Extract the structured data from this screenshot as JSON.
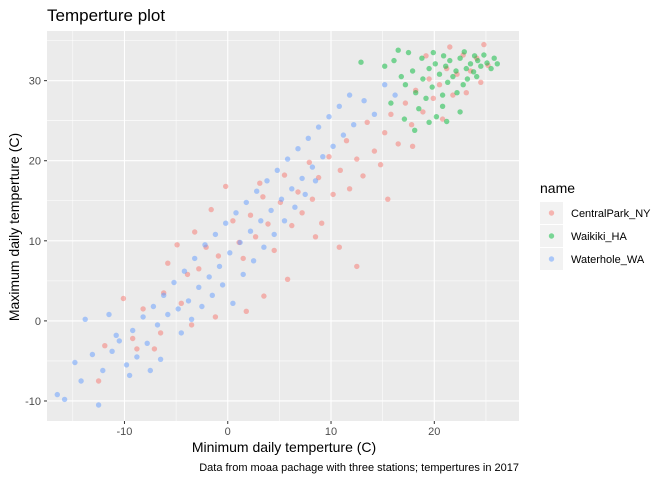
{
  "chart_data": {
    "type": "scatter",
    "title": "Temperture plot",
    "xlabel": "Minimum daily temperture (C)",
    "ylabel": "Maximum daily temperture (C)",
    "caption": "Data from moaa pachage with three stations; tempertures in 2017",
    "xlim": [
      -17.5,
      28.2
    ],
    "ylim": [
      -12.5,
      36.2
    ],
    "x_ticks": [
      -10,
      0,
      10,
      20
    ],
    "y_ticks": [
      -10,
      0,
      10,
      20,
      30
    ],
    "x_tick_labels": [
      "-10",
      "0",
      "10",
      "20"
    ],
    "y_tick_labels": [
      "-10",
      "0",
      "10",
      "20",
      "30"
    ],
    "grid": true,
    "legend": {
      "title": "name",
      "position": "right"
    },
    "point_alpha": 0.5,
    "series": [
      {
        "name": "CentralPark_NY",
        "color": "#F8766D",
        "points": [
          [
            -12.5,
            -7.5
          ],
          [
            -11.9,
            -3.1
          ],
          [
            -10.1,
            2.8
          ],
          [
            -9.2,
            -2.2
          ],
          [
            -8.8,
            -3.5
          ],
          [
            -8.2,
            1.5
          ],
          [
            -7.1,
            -3.5
          ],
          [
            -6.5,
            -1.5
          ],
          [
            -6.2,
            3.5
          ],
          [
            -5.8,
            7.2
          ],
          [
            -4.9,
            9.5
          ],
          [
            -4.5,
            2.2
          ],
          [
            -3.9,
            5.8
          ],
          [
            -3.2,
            11.1
          ],
          [
            -2.8,
            6.5
          ],
          [
            -2.1,
            9.2
          ],
          [
            -1.6,
            13.9
          ],
          [
            -0.9,
            8.1
          ],
          [
            -0.2,
            16.8
          ],
          [
            0.5,
            12.5
          ],
          [
            1.1,
            9.8
          ],
          [
            1.5,
            7.8
          ],
          [
            2.2,
            13.2
          ],
          [
            2.7,
            10.5
          ],
          [
            3.1,
            17.2
          ],
          [
            3.4,
            15.5
          ],
          [
            3.9,
            12.1
          ],
          [
            4.5,
            8.8
          ],
          [
            5.1,
            14.8
          ],
          [
            5.5,
            18.2
          ],
          [
            6.2,
            11.9
          ],
          [
            6.8,
            16.1
          ],
          [
            7.2,
            13.5
          ],
          [
            7.9,
            19.8
          ],
          [
            8.2,
            15.2
          ],
          [
            8.8,
            17.9
          ],
          [
            9.1,
            12.2
          ],
          [
            9.8,
            20.5
          ],
          [
            10.2,
            15.8
          ],
          [
            10.9,
            18.8
          ],
          [
            11.5,
            22.5
          ],
          [
            11.8,
            16.5
          ],
          [
            12.5,
            20.2
          ],
          [
            13.1,
            18.1
          ],
          [
            13.5,
            24.8
          ],
          [
            14.2,
            21.2
          ],
          [
            14.8,
            19.5
          ],
          [
            15.2,
            23.5
          ],
          [
            15.8,
            25.8
          ],
          [
            16.5,
            22.1
          ],
          [
            17.2,
            27.2
          ],
          [
            17.8,
            24.5
          ],
          [
            18.2,
            28.8
          ],
          [
            18.9,
            26.1
          ],
          [
            19.5,
            30.2
          ],
          [
            19.9,
            27.8
          ],
          [
            20.5,
            29.5
          ],
          [
            21.2,
            31.5
          ],
          [
            21.8,
            28.2
          ],
          [
            22.2,
            30.8
          ],
          [
            22.8,
            33.2
          ],
          [
            23.5,
            31.2
          ],
          [
            24.1,
            32.8
          ],
          [
            24.8,
            34.5
          ],
          [
            25.2,
            31.9
          ],
          [
            12.5,
            6.8
          ],
          [
            10.8,
            9.2
          ],
          [
            8.5,
            10.5
          ],
          [
            15.5,
            15.2
          ],
          [
            17.9,
            21.8
          ],
          [
            20.8,
            25.2
          ],
          [
            23.1,
            28.5
          ],
          [
            24.5,
            29.8
          ],
          [
            5.8,
            5.2
          ],
          [
            3.5,
            3.1
          ],
          [
            1.8,
            1.2
          ],
          [
            -1.2,
            0.5
          ],
          [
            -3.5,
            -0.5
          ],
          [
            19.2,
            33.1
          ],
          [
            21.5,
            34.2
          ]
        ]
      },
      {
        "name": "Waikiki_HA",
        "color": "#00BA38",
        "points": [
          [
            12.9,
            32.3
          ],
          [
            15.2,
            31.8
          ],
          [
            16.1,
            32.5
          ],
          [
            16.8,
            30.5
          ],
          [
            17.2,
            29.5
          ],
          [
            17.9,
            31.2
          ],
          [
            18.2,
            28.5
          ],
          [
            18.5,
            26.5
          ],
          [
            18.9,
            30.2
          ],
          [
            19.2,
            27.8
          ],
          [
            19.5,
            31.5
          ],
          [
            19.8,
            29.2
          ],
          [
            20.1,
            32.1
          ],
          [
            20.2,
            25.5
          ],
          [
            20.5,
            30.8
          ],
          [
            20.8,
            28.2
          ],
          [
            21.1,
            31.8
          ],
          [
            21.3,
            29.8
          ],
          [
            21.5,
            32.5
          ],
          [
            21.8,
            30.5
          ],
          [
            22.1,
            31.2
          ],
          [
            22.2,
            28.5
          ],
          [
            22.5,
            32.8
          ],
          [
            22.8,
            29.5
          ],
          [
            23.1,
            31.5
          ],
          [
            23.2,
            30.2
          ],
          [
            23.5,
            32.1
          ],
          [
            23.8,
            31.1
          ],
          [
            24.1,
            30.5
          ],
          [
            24.2,
            32.5
          ],
          [
            24.5,
            31.8
          ],
          [
            24.8,
            33.2
          ],
          [
            25.1,
            32.2
          ],
          [
            25.5,
            31.5
          ],
          [
            25.8,
            32.8
          ],
          [
            26.1,
            32.1
          ],
          [
            16.5,
            33.8
          ],
          [
            17.5,
            33.5
          ],
          [
            18.8,
            32.8
          ],
          [
            19.9,
            33.5
          ],
          [
            20.9,
            33.1
          ],
          [
            22.9,
            33.6
          ],
          [
            23.9,
            33.1
          ],
          [
            15.8,
            27.2
          ],
          [
            17.1,
            25.2
          ],
          [
            18.1,
            23.8
          ],
          [
            19.5,
            24.8
          ],
          [
            20.8,
            26.8
          ],
          [
            21.2,
            24.9
          ],
          [
            22.5,
            26.1
          ]
        ]
      },
      {
        "name": "Waterhole_WA",
        "color": "#619CFF",
        "points": [
          [
            -16.5,
            -9.2
          ],
          [
            -15.8,
            -9.8
          ],
          [
            -14.8,
            -5.2
          ],
          [
            -14.2,
            -7.5
          ],
          [
            -13.8,
            0.2
          ],
          [
            -13.1,
            -4.2
          ],
          [
            -12.5,
            -10.5
          ],
          [
            -12.1,
            -6.2
          ],
          [
            -11.5,
            0.8
          ],
          [
            -11.2,
            -3.8
          ],
          [
            -10.5,
            -2.5
          ],
          [
            -9.8,
            -5.5
          ],
          [
            -9.2,
            -1.2
          ],
          [
            -8.8,
            -4.5
          ],
          [
            -8.2,
            0.5
          ],
          [
            -7.8,
            -2.8
          ],
          [
            -7.2,
            1.8
          ],
          [
            -6.8,
            -0.5
          ],
          [
            -6.2,
            3.2
          ],
          [
            -5.8,
            0.8
          ],
          [
            -5.2,
            4.8
          ],
          [
            -4.8,
            1.5
          ],
          [
            -4.2,
            6.2
          ],
          [
            -3.8,
            2.5
          ],
          [
            -3.2,
            7.8
          ],
          [
            -2.8,
            4.2
          ],
          [
            -2.2,
            9.5
          ],
          [
            -1.8,
            5.5
          ],
          [
            -1.2,
            10.8
          ],
          [
            -0.8,
            6.8
          ],
          [
            -0.2,
            12.2
          ],
          [
            0.2,
            8.5
          ],
          [
            0.8,
            13.5
          ],
          [
            1.2,
            9.8
          ],
          [
            1.8,
            14.8
          ],
          [
            2.2,
            11.2
          ],
          [
            2.8,
            16.2
          ],
          [
            3.2,
            12.5
          ],
          [
            3.8,
            17.5
          ],
          [
            4.2,
            13.8
          ],
          [
            4.8,
            18.8
          ],
          [
            5.2,
            15.2
          ],
          [
            5.8,
            20.2
          ],
          [
            6.2,
            16.5
          ],
          [
            6.8,
            21.5
          ],
          [
            7.2,
            17.8
          ],
          [
            7.8,
            22.8
          ],
          [
            8.2,
            19.2
          ],
          [
            8.8,
            24.2
          ],
          [
            9.2,
            20.5
          ],
          [
            9.8,
            25.5
          ],
          [
            10.2,
            21.8
          ],
          [
            10.8,
            26.8
          ],
          [
            11.2,
            23.2
          ],
          [
            11.8,
            28.2
          ],
          [
            12.2,
            24.5
          ],
          [
            13.2,
            27.5
          ],
          [
            14.2,
            25.8
          ],
          [
            15.2,
            29.5
          ],
          [
            16.2,
            28.2
          ],
          [
            -4.5,
            -1.5
          ],
          [
            -3.5,
            0.2
          ],
          [
            -2.5,
            1.8
          ],
          [
            -1.5,
            3.2
          ],
          [
            -0.5,
            4.5
          ],
          [
            0.5,
            2.2
          ],
          [
            1.5,
            5.8
          ],
          [
            2.5,
            7.5
          ],
          [
            3.5,
            9.2
          ],
          [
            4.5,
            10.8
          ],
          [
            5.5,
            12.5
          ],
          [
            6.5,
            14.2
          ],
          [
            7.5,
            15.8
          ],
          [
            8.5,
            17.5
          ],
          [
            -10.8,
            -1.8
          ],
          [
            -9.5,
            -6.8
          ],
          [
            -7.5,
            -6.2
          ],
          [
            -6.5,
            -4.8
          ]
        ]
      }
    ]
  }
}
